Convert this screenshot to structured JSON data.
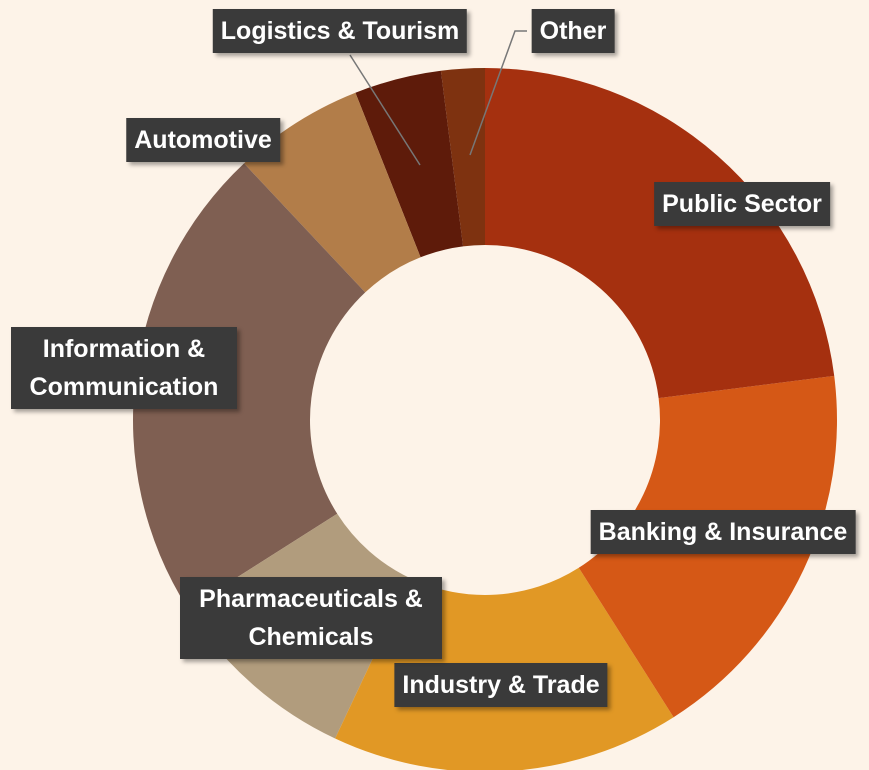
{
  "chart_data": {
    "type": "donut",
    "categories": [
      "Public Sector",
      "Banking & Insurance",
      "Industry & Trade",
      "Pharmaceuticals & Chemicals",
      "Information & Communication",
      "Automotive",
      "Logistics & Tourism",
      "Other"
    ],
    "values": [
      23,
      18,
      16,
      9,
      22,
      6,
      4,
      2
    ],
    "colors": [
      "#a5300f",
      "#d55816",
      "#e19825",
      "#b19c7d",
      "#7f5f52",
      "#b27d49",
      "#5e1b0a",
      "#7e3210"
    ]
  }
}
